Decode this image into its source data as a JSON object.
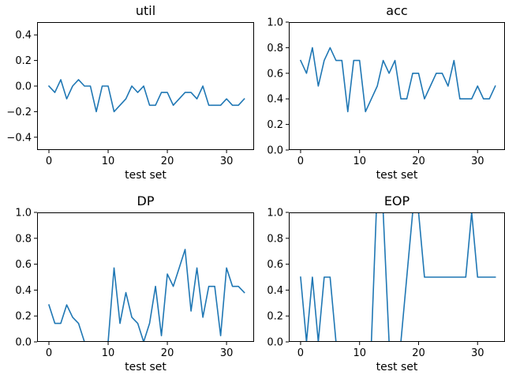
{
  "chart_data": [
    {
      "type": "line",
      "title": "util",
      "xlabel": "test set",
      "ylabel": "",
      "xlim": [
        -2.0,
        34.65
      ],
      "ylim": [
        -0.5,
        0.5
      ],
      "xticks": [
        0,
        10,
        20,
        30
      ],
      "yticks": [
        -0.4,
        -0.2,
        0.0,
        0.2,
        0.4
      ],
      "ytick_labels": [
        "−0.4",
        "−0.2",
        "0.0",
        "0.2",
        "0.4"
      ],
      "grid": false,
      "color": "#1f77b4",
      "x": [
        0,
        1,
        2,
        3,
        4,
        5,
        6,
        7,
        8,
        9,
        10,
        11,
        12,
        13,
        14,
        15,
        16,
        17,
        18,
        19,
        20,
        21,
        22,
        23,
        24,
        25,
        26,
        27,
        28,
        29,
        30,
        31,
        32,
        33
      ],
      "y": [
        0,
        -0.05,
        0.05,
        -0.1,
        0,
        0.05,
        0,
        0,
        -0.2,
        0,
        0,
        -0.2,
        -0.15,
        -0.1,
        0,
        -0.05,
        0,
        -0.15,
        -0.15,
        -0.05,
        -0.05,
        -0.15,
        -0.1,
        -0.05,
        -0.05,
        -0.1,
        0,
        -0.15,
        -0.15,
        -0.15,
        -0.1,
        -0.15,
        -0.15,
        -0.1
      ]
    },
    {
      "type": "line",
      "title": "acc",
      "xlabel": "test set",
      "ylabel": "",
      "xlim": [
        -2.0,
        34.65
      ],
      "ylim": [
        0.0,
        1.0
      ],
      "xticks": [
        0,
        10,
        20,
        30
      ],
      "yticks": [
        0.0,
        0.2,
        0.4,
        0.6,
        0.8,
        1.0
      ],
      "ytick_labels": [
        "0.0",
        "0.2",
        "0.4",
        "0.6",
        "0.8",
        "1.0"
      ],
      "grid": false,
      "color": "#1f77b4",
      "x": [
        0,
        1,
        2,
        3,
        4,
        5,
        6,
        7,
        8,
        9,
        10,
        11,
        12,
        13,
        14,
        15,
        16,
        17,
        18,
        19,
        20,
        21,
        22,
        23,
        24,
        25,
        26,
        27,
        28,
        29,
        30,
        31,
        32,
        33
      ],
      "y": [
        0.7,
        0.6,
        0.8,
        0.5,
        0.7,
        0.8,
        0.7,
        0.7,
        0.3,
        0.7,
        0.7,
        0.3,
        0.4,
        0.5,
        0.7,
        0.6,
        0.7,
        0.4,
        0.4,
        0.6,
        0.6,
        0.4,
        0.5,
        0.6,
        0.6,
        0.5,
        0.7,
        0.4,
        0.4,
        0.4,
        0.5,
        0.4,
        0.4,
        0.5
      ]
    },
    {
      "type": "line",
      "title": "DP",
      "xlabel": "test set",
      "ylabel": "",
      "xlim": [
        -2.0,
        34.65
      ],
      "ylim": [
        0.0,
        1.0
      ],
      "xticks": [
        0,
        10,
        20,
        30
      ],
      "yticks": [
        0.0,
        0.2,
        0.4,
        0.6,
        0.8,
        1.0
      ],
      "ytick_labels": [
        "0.0",
        "0.2",
        "0.4",
        "0.6",
        "0.8",
        "1.0"
      ],
      "grid": false,
      "color": "#1f77b4",
      "x": [
        0,
        1,
        2,
        3,
        4,
        5,
        6,
        7,
        8,
        9,
        10,
        11,
        12,
        13,
        14,
        15,
        16,
        17,
        18,
        19,
        20,
        21,
        22,
        23,
        24,
        25,
        26,
        27,
        28,
        29,
        30,
        31,
        32,
        33
      ],
      "y": [
        0.286,
        0.143,
        0.143,
        0.286,
        0.19,
        0.143,
        0,
        0,
        0,
        0,
        0,
        0.571,
        0.143,
        0.381,
        0.19,
        0.143,
        0,
        0.143,
        0.429,
        0.048,
        0.524,
        0.429,
        0.571,
        0.714,
        0.238,
        0.571,
        0.19,
        0.429,
        0.429,
        0.048,
        0.571,
        0.429,
        0.429,
        0.381
      ]
    },
    {
      "type": "line",
      "title": "EOP",
      "xlabel": "test set",
      "ylabel": "",
      "xlim": [
        -2.0,
        34.65
      ],
      "ylim": [
        0.0,
        1.0
      ],
      "xticks": [
        0,
        10,
        20,
        30
      ],
      "yticks": [
        0.0,
        0.2,
        0.4,
        0.6,
        0.8,
        1.0
      ],
      "ytick_labels": [
        "0.0",
        "0.2",
        "0.4",
        "0.6",
        "0.8",
        "1.0"
      ],
      "grid": false,
      "color": "#1f77b4",
      "x": [
        0,
        1,
        2,
        3,
        4,
        5,
        6,
        7,
        8,
        9,
        10,
        11,
        12,
        13,
        14,
        15,
        16,
        17,
        18,
        19,
        20,
        21,
        22,
        23,
        24,
        25,
        26,
        27,
        28,
        29,
        30,
        31,
        32,
        33
      ],
      "y": [
        0.5,
        0,
        0.5,
        0,
        0.5,
        0.5,
        0,
        0,
        0,
        0,
        0,
        0,
        0,
        1.2,
        1,
        0,
        0,
        0,
        0.5,
        1,
        1,
        0.5,
        0.5,
        0.5,
        0.5,
        0.5,
        0.5,
        0.5,
        0.5,
        1,
        0.5,
        0.5,
        0.5,
        0.5
      ]
    }
  ]
}
